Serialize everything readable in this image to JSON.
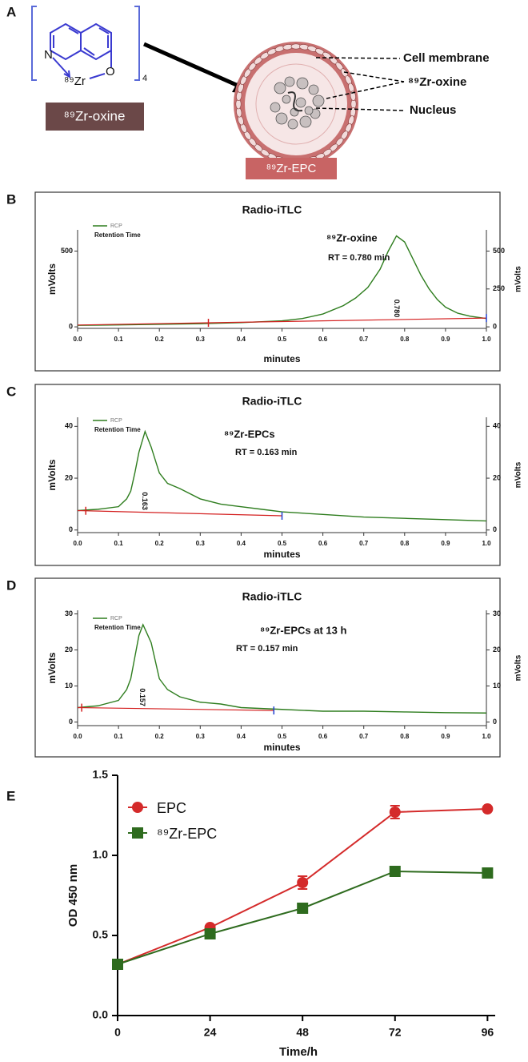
{
  "panel_a": {
    "letter": "A",
    "atom_n": "N",
    "atom_zr": "⁸⁹Zr",
    "atom_o": "O",
    "count": "4",
    "oxine_box": "⁸⁹Zr-oxine",
    "epc_box": "⁸⁹Zr-EPC",
    "label_membrane": "Cell membrane",
    "label_oxine": "⁸⁹Zr-oxine",
    "label_nucleus": "Nucleus"
  },
  "chart_data": [
    {
      "panel": "B",
      "type": "line",
      "title": "Radio-iTLC",
      "xlabel": "minutes",
      "ylabel": "mVolts",
      "y2label": "mVolts",
      "legend": "top-left",
      "legend_note": "Retention Time",
      "annotations": [
        "⁸⁹Zr-oxine",
        "RT = 0.780 min"
      ],
      "peak_label": {
        "x": 0.78,
        "label": "0.780"
      },
      "xlim": [
        0,
        1
      ],
      "xticks": [
        {
          "value": 0,
          "label": "0.0"
        },
        0.1,
        0.2,
        0.3,
        0.4,
        0.5,
        0.6,
        0.7,
        0.8,
        0.9,
        {
          "value": 1,
          "label": "1.0"
        }
      ],
      "ylim": [
        -10,
        640
      ],
      "yticks": [
        0,
        500
      ],
      "y2lim": [
        -10,
        640
      ],
      "y2ticks": [
        0,
        250,
        500
      ],
      "series": [
        {
          "name": "RCP",
          "color": "#2e7d1e",
          "x": [
            0,
            0.1,
            0.2,
            0.3,
            0.4,
            0.5,
            0.55,
            0.6,
            0.65,
            0.68,
            0.71,
            0.74,
            0.76,
            0.78,
            0.8,
            0.82,
            0.84,
            0.86,
            0.88,
            0.9,
            0.93,
            0.96,
            1.0
          ],
          "values": [
            10,
            13,
            17,
            21,
            28,
            40,
            55,
            85,
            140,
            190,
            260,
            380,
            500,
            600,
            560,
            450,
            340,
            250,
            180,
            130,
            90,
            70,
            55
          ]
        },
        {
          "color": "#d42020",
          "x": [
            0,
            1
          ],
          "values": [
            12,
            58
          ]
        }
      ],
      "markers": [
        {
          "x": 0.32,
          "color": "#d42020"
        },
        {
          "x": 1,
          "color": "#2040d0"
        }
      ]
    },
    {
      "panel": "C",
      "type": "line",
      "title": "Radio-iTLC",
      "xlabel": "minutes",
      "ylabel": "mVolts",
      "y2label": "mVolts",
      "legend": "top-left",
      "legend_note": "Retention Time",
      "annotations": [
        "⁸⁹Zr-EPCs",
        "RT = 0.163 min"
      ],
      "peak_label": {
        "x": 0.163,
        "label": "0.163"
      },
      "xlim": [
        0,
        1
      ],
      "xticks": [
        {
          "value": 0,
          "label": "0.0"
        },
        0.1,
        0.2,
        0.3,
        0.4,
        0.5,
        0.6,
        0.7,
        0.8,
        0.9,
        {
          "value": 1,
          "label": "1.0"
        }
      ],
      "ylim": [
        -1,
        43.5
      ],
      "yticks": [
        0,
        20,
        40
      ],
      "y2lim": [
        -1,
        43.5
      ],
      "y2ticks": [
        0,
        20,
        40
      ],
      "series": [
        {
          "name": "RCP",
          "color": "#2e7d1e",
          "x": [
            0,
            0.05,
            0.1,
            0.12,
            0.13,
            0.14,
            0.15,
            0.165,
            0.18,
            0.2,
            0.22,
            0.25,
            0.3,
            0.35,
            0.4,
            0.45,
            0.5,
            0.6,
            0.7,
            0.8,
            0.9,
            1.0
          ],
          "values": [
            7.5,
            8,
            9,
            12,
            15,
            22,
            30,
            38,
            32,
            22,
            18,
            16,
            12,
            10,
            9,
            8,
            7,
            6,
            5,
            4.5,
            4,
            3.5
          ]
        },
        {
          "color": "#d42020",
          "x": [
            0,
            0.5
          ],
          "values": [
            7.5,
            5.5
          ]
        }
      ],
      "markers": [
        {
          "x": 0.02,
          "color": "#d42020"
        },
        {
          "x": 0.5,
          "color": "#2040d0"
        }
      ]
    },
    {
      "panel": "D",
      "type": "line",
      "title": "Radio-iTLC",
      "xlabel": "minutes",
      "ylabel": "mVolts",
      "y2label": "mVolts",
      "legend": "top-left",
      "legend_note": "Retention Time",
      "annotations": [
        "⁸⁹Zr-EPCs  at 13 h",
        "RT = 0.157 min"
      ],
      "peak_label": {
        "x": 0.157,
        "label": "0.157"
      },
      "xlim": [
        0,
        1
      ],
      "xticks": [
        {
          "value": 0,
          "label": "0.0"
        },
        0.1,
        0.2,
        0.3,
        0.4,
        0.5,
        0.6,
        0.7,
        0.8,
        0.9,
        {
          "value": 1,
          "label": "1.0"
        }
      ],
      "ylim": [
        -1,
        31
      ],
      "yticks": [
        0,
        10,
        20,
        30
      ],
      "y2lim": [
        -1,
        31
      ],
      "y2ticks": [
        0,
        10,
        20,
        30
      ],
      "series": [
        {
          "name": "RCP",
          "color": "#2e7d1e",
          "x": [
            0,
            0.05,
            0.1,
            0.12,
            0.13,
            0.14,
            0.15,
            0.16,
            0.18,
            0.2,
            0.22,
            0.25,
            0.3,
            0.35,
            0.4,
            0.5,
            0.6,
            0.7,
            0.8,
            0.9,
            1.0
          ],
          "values": [
            4,
            4.5,
            6,
            9,
            12,
            18,
            24,
            27,
            22,
            12,
            9,
            7,
            5.5,
            5,
            4,
            3.5,
            3,
            3,
            2.8,
            2.6,
            2.5
          ]
        },
        {
          "color": "#d42020",
          "x": [
            0,
            0.48
          ],
          "values": [
            4,
            3.2
          ]
        }
      ],
      "markers": [
        {
          "x": 0.01,
          "color": "#d42020"
        },
        {
          "x": 0.48,
          "color": "#2040d0"
        }
      ]
    },
    {
      "panel": "E",
      "type": "line",
      "xlabel": "Time/h",
      "ylabel": "OD 450 nm",
      "legend": "top-left",
      "x": [
        0,
        24,
        48,
        72,
        96
      ],
      "xlim": [
        0,
        98
      ],
      "xticks": [
        0,
        24,
        48,
        72,
        96
      ],
      "ylim": [
        0,
        1.5
      ],
      "yticks": [
        {
          "value": 0,
          "label": "0.0"
        },
        0.5,
        {
          "value": 1,
          "label": "1.0"
        },
        {
          "value": 1.5,
          "label": "1.5"
        }
      ],
      "series": [
        {
          "name": "EPC",
          "color": "#d42a2a",
          "marker": "circle",
          "values": [
            0.32,
            0.55,
            0.83,
            1.27,
            1.29
          ],
          "errors": [
            0.01,
            0.01,
            0.04,
            0.04,
            0.01
          ]
        },
        {
          "name": "⁸⁹Zr-EPC",
          "color": "#2e6b1e",
          "marker": "square",
          "values": [
            0.32,
            0.51,
            0.67,
            0.9,
            0.89
          ],
          "errors": [
            0.01,
            0.01,
            0.03,
            0.02,
            0.01
          ]
        }
      ]
    }
  ]
}
